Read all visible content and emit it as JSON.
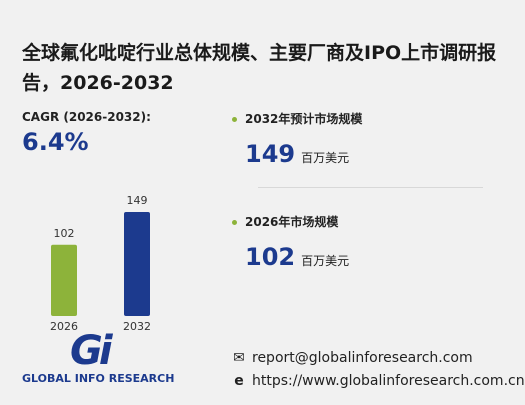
{
  "title": "全球氟化吡啶行业总体规模、主要厂商及IPO上市调研报告，2026-2032",
  "cagr": {
    "label": "CAGR (2026-2032):",
    "value": "6.4%"
  },
  "chart_data": {
    "type": "bar",
    "categories": [
      "2026",
      "2032"
    ],
    "values": [
      102,
      149
    ],
    "colors": [
      "#8db33a",
      "#1c3a8e"
    ]
  },
  "highlights": [
    {
      "label": "2032年预计市场规模",
      "value": 149,
      "unit": "百万美元"
    },
    {
      "label": "2026年市场规模",
      "value": 102,
      "unit": "百万美元"
    }
  ],
  "logo": {
    "mark": "Gi",
    "name": "GLOBAL INFO RESEARCH"
  },
  "contact": {
    "email": "report@globalinforesearch.com",
    "website": "https://www.globalinforesearch.com.cn"
  }
}
